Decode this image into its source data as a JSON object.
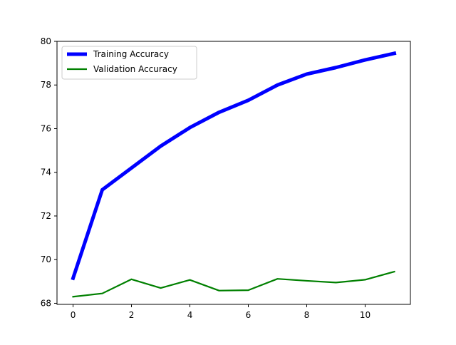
{
  "chart_data": {
    "type": "line",
    "title": "",
    "xlabel": "",
    "ylabel": "",
    "x": [
      0,
      1,
      2,
      3,
      4,
      5,
      6,
      7,
      8,
      9,
      10,
      11
    ],
    "xlim": [
      -0.55,
      11.55
    ],
    "ylim": [
      67.95,
      80.0
    ],
    "xticks": [
      0,
      2,
      4,
      6,
      8,
      10
    ],
    "yticks": [
      68,
      70,
      72,
      74,
      76,
      78,
      80
    ],
    "grid": false,
    "legend_position": "upper-left",
    "series": [
      {
        "name": "Training Accuracy",
        "color": "#0000ff",
        "values": [
          69.15,
          73.2,
          74.2,
          75.2,
          76.05,
          76.75,
          77.3,
          78.0,
          78.5,
          78.8,
          79.15,
          79.45
        ]
      },
      {
        "name": "Validation Accuracy",
        "color": "#008000",
        "values": [
          68.3,
          68.45,
          69.1,
          68.7,
          69.07,
          68.58,
          68.6,
          69.12,
          69.03,
          68.95,
          69.08,
          69.45
        ]
      }
    ]
  }
}
